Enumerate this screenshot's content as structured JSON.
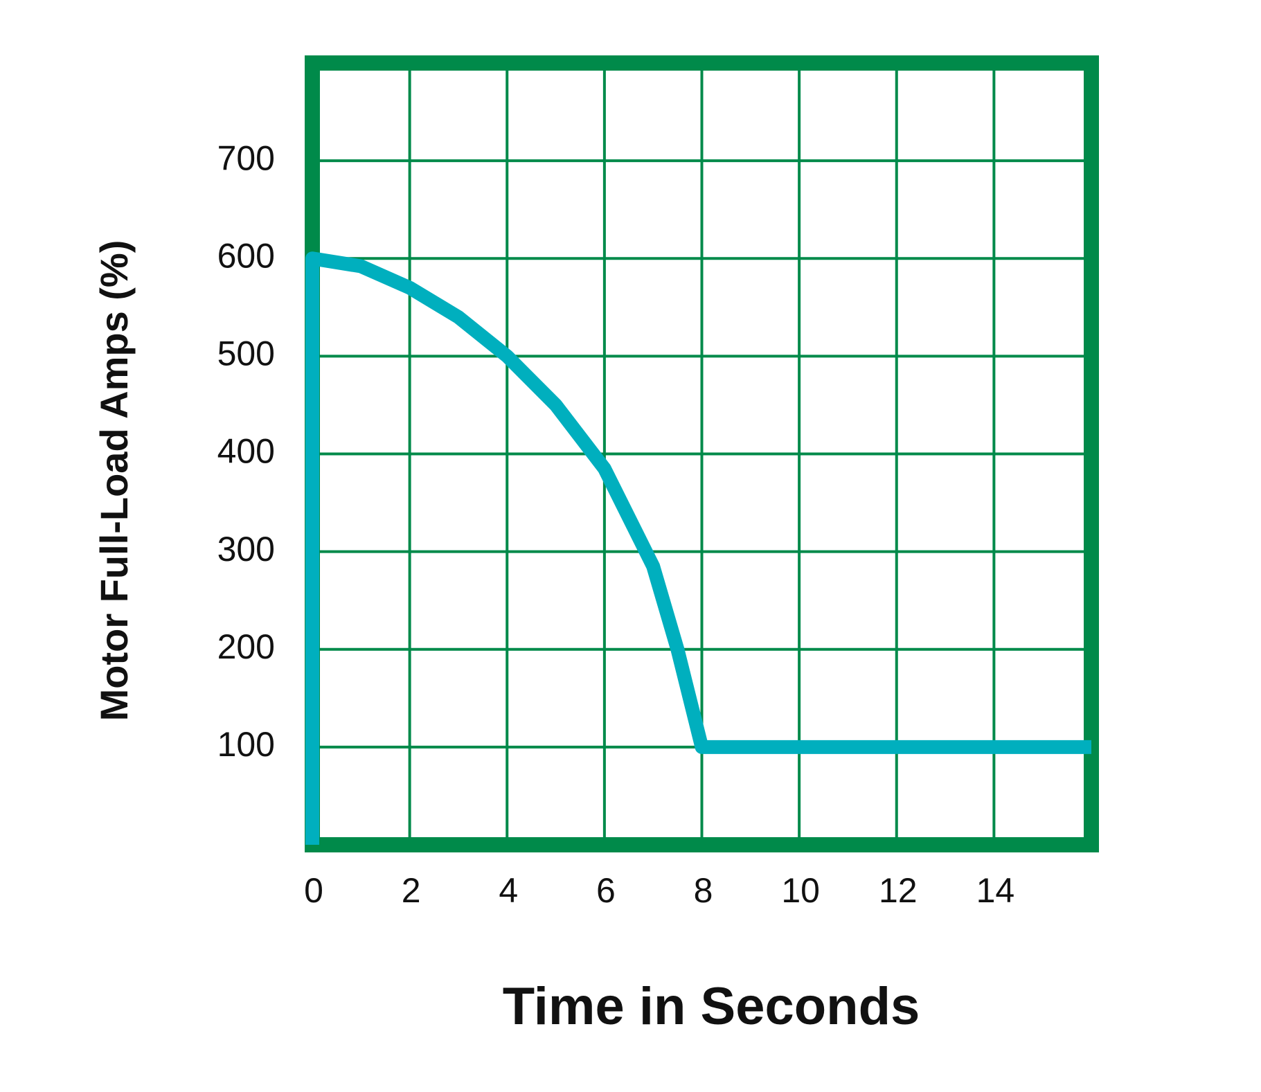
{
  "chart_data": {
    "type": "line",
    "x_label": "Time in Seconds",
    "y_label": "Motor Full-Load Amps (%)",
    "x": [
      0,
      0,
      1,
      2,
      3,
      4,
      5,
      6,
      7,
      7.5,
      8,
      16
    ],
    "series": [
      {
        "color": "#00afbe",
        "values": [
          0,
          600,
          592,
          570,
          540,
          500,
          450,
          385,
          285,
          200,
          100,
          100
        ]
      }
    ],
    "xlim": [
      0,
      16
    ],
    "ylim": [
      0,
      800
    ],
    "xticks": [
      0,
      2,
      4,
      6,
      8,
      10,
      12,
      14
    ],
    "yticks": [
      100,
      200,
      300,
      400,
      500,
      600,
      700
    ],
    "grid": true,
    "grid_color": "#008a4a"
  }
}
